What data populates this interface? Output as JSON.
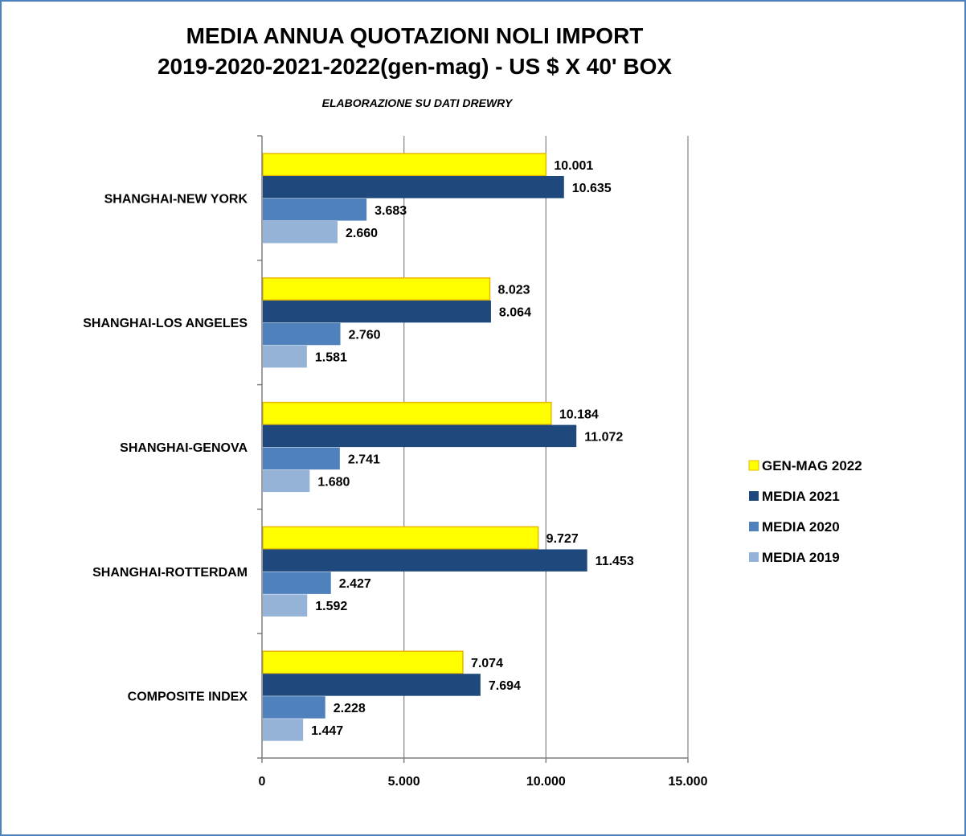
{
  "chart_data": {
    "type": "bar",
    "orientation": "horizontal",
    "title": "MEDIA ANNUA QUOTAZIONI NOLI IMPORT",
    "title_line2": "2019-2020-2021-2022(gen-mag) - US $ X 40' BOX",
    "subtitle": "ELABORAZIONE SU DATI DREWRY",
    "categories": [
      "SHANGHAI-NEW YORK",
      "SHANGHAI-LOS ANGELES",
      "SHANGHAI-GENOVA",
      "SHANGHAI-ROTTERDAM",
      "COMPOSITE INDEX"
    ],
    "series": [
      {
        "name": "GEN-MAG 2022",
        "color": "#ffff00",
        "border": "#e6b800",
        "values": [
          10001,
          8023,
          10184,
          9727,
          7074
        ],
        "labels": [
          "10.001",
          "8.023",
          "10.184",
          "9.727",
          "7.074"
        ]
      },
      {
        "name": "MEDIA 2021",
        "color": "#1f497d",
        "values": [
          10635,
          8064,
          11072,
          11453,
          7694
        ],
        "labels": [
          "10.635",
          "8.064",
          "11.072",
          "11.453",
          "7.694"
        ]
      },
      {
        "name": "MEDIA 2020",
        "color": "#4f81bd",
        "values": [
          3683,
          2760,
          2741,
          2427,
          2228
        ],
        "labels": [
          "3.683",
          "2.760",
          "2.741",
          "2.427",
          "2.228"
        ]
      },
      {
        "name": "MEDIA 2019",
        "color": "#95b3d7",
        "values": [
          2660,
          1581,
          1680,
          1592,
          1447
        ],
        "labels": [
          "2.660",
          "1.581",
          "1.680",
          "1.592",
          "1.447"
        ]
      }
    ],
    "xlim": [
      0,
      15000
    ],
    "ticks": [
      0,
      5000,
      10000,
      15000
    ],
    "tick_labels": [
      "0",
      "5.000",
      "10.000",
      "15.000"
    ],
    "xlabel": "",
    "ylabel": "",
    "grid": true,
    "legend_position": "right"
  }
}
